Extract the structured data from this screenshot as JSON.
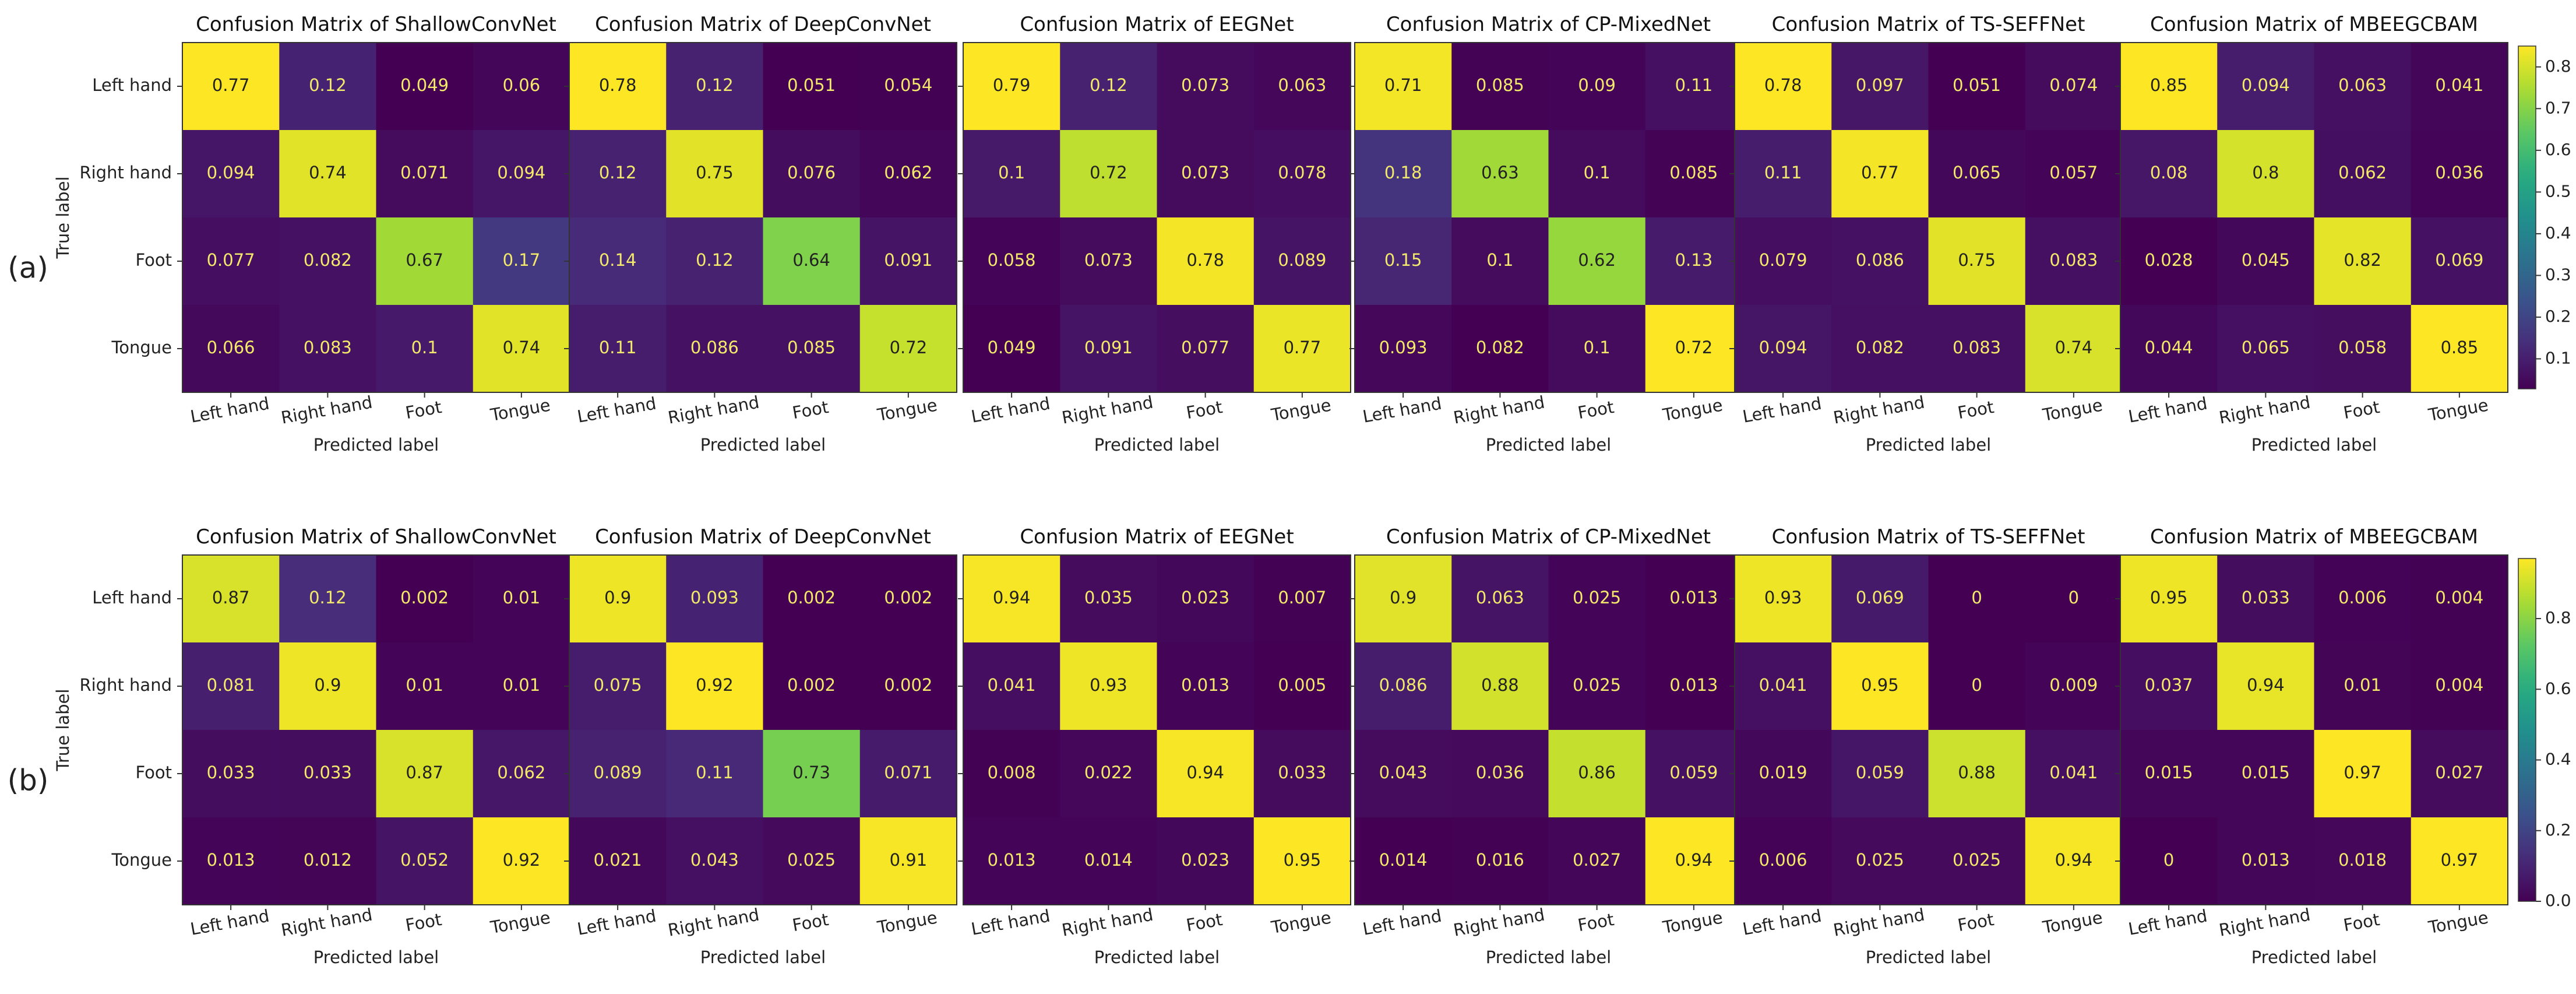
{
  "row_labels": [
    "(a)",
    "(b)"
  ],
  "chart_data": [
    {
      "type": "heatmap",
      "row": 0,
      "title": "Confusion Matrix of ShallowConvNet",
      "xlabel": "Predicted label",
      "ylabel": "True label",
      "x_categories": [
        "Left hand",
        "Right hand",
        "Foot",
        "Tongue"
      ],
      "y_categories": [
        "Left hand",
        "Right hand",
        "Foot",
        "Tongue"
      ],
      "cell_labels": [
        [
          "0.77",
          "0.12",
          "0.049",
          "0.06"
        ],
        [
          "0.094",
          "0.74",
          "0.071",
          "0.094"
        ],
        [
          "0.077",
          "0.082",
          "0.67",
          "0.17"
        ],
        [
          "0.066",
          "0.083",
          "0.1",
          "0.74"
        ]
      ],
      "values": [
        [
          0.77,
          0.12,
          0.049,
          0.06
        ],
        [
          0.094,
          0.74,
          0.071,
          0.094
        ],
        [
          0.077,
          0.082,
          0.67,
          0.17
        ],
        [
          0.066,
          0.083,
          0.1,
          0.74
        ]
      ],
      "colormap": "viridis",
      "vmin": 0.049,
      "vmax": 0.77
    },
    {
      "type": "heatmap",
      "row": 0,
      "title": "Confusion Matrix of DeepConvNet",
      "xlabel": "Predicted label",
      "ylabel": "",
      "x_categories": [
        "Left hand",
        "Right hand",
        "Foot",
        "Tongue"
      ],
      "y_categories": [
        "Left hand",
        "Right hand",
        "Foot",
        "Tongue"
      ],
      "cell_labels": [
        [
          "0.78",
          "0.12",
          "0.051",
          "0.054"
        ],
        [
          "0.12",
          "0.75",
          "0.076",
          "0.062"
        ],
        [
          "0.14",
          "0.12",
          "0.64",
          "0.091"
        ],
        [
          "0.11",
          "0.086",
          "0.085",
          "0.72"
        ]
      ],
      "values": [
        [
          0.78,
          0.12,
          0.051,
          0.054
        ],
        [
          0.12,
          0.75,
          0.076,
          0.062
        ],
        [
          0.14,
          0.12,
          0.64,
          0.091
        ],
        [
          0.11,
          0.086,
          0.085,
          0.72
        ]
      ],
      "colormap": "viridis",
      "vmin": 0.051,
      "vmax": 0.78
    },
    {
      "type": "heatmap",
      "row": 0,
      "title": "Confusion Matrix of EEGNet",
      "xlabel": "Predicted label",
      "ylabel": "",
      "x_categories": [
        "Left hand",
        "Right hand",
        "Foot",
        "Tongue"
      ],
      "y_categories": [
        "Left hand",
        "Right hand",
        "Foot",
        "Tongue"
      ],
      "cell_labels": [
        [
          "0.79",
          "0.12",
          "0.073",
          "0.063"
        ],
        [
          "0.1",
          "0.72",
          "0.073",
          "0.078"
        ],
        [
          "0.058",
          "0.073",
          "0.78",
          "0.089"
        ],
        [
          "0.049",
          "0.091",
          "0.077",
          "0.77"
        ]
      ],
      "values": [
        [
          0.79,
          0.12,
          0.073,
          0.063
        ],
        [
          0.1,
          0.72,
          0.073,
          0.078
        ],
        [
          0.058,
          0.073,
          0.78,
          0.089
        ],
        [
          0.049,
          0.091,
          0.077,
          0.77
        ]
      ],
      "colormap": "viridis",
      "vmin": 0.049,
      "vmax": 0.79
    },
    {
      "type": "heatmap",
      "row": 0,
      "title": "Confusion Matrix of CP-MixedNet",
      "xlabel": "Predicted label",
      "ylabel": "",
      "x_categories": [
        "Left hand",
        "Right hand",
        "Foot",
        "Tongue"
      ],
      "y_categories": [
        "Left hand",
        "Right hand",
        "Foot",
        "Tongue"
      ],
      "cell_labels": [
        [
          "0.71",
          "0.085",
          "0.09",
          "0.11"
        ],
        [
          "0.18",
          "0.63",
          "0.1",
          "0.085"
        ],
        [
          "0.15",
          "0.1",
          "0.62",
          "0.13"
        ],
        [
          "0.093",
          "0.082",
          "0.1",
          "0.72"
        ]
      ],
      "values": [
        [
          0.71,
          0.085,
          0.09,
          0.11
        ],
        [
          0.18,
          0.63,
          0.1,
          0.085
        ],
        [
          0.15,
          0.1,
          0.62,
          0.13
        ],
        [
          0.093,
          0.082,
          0.1,
          0.72
        ]
      ],
      "colormap": "viridis",
      "vmin": 0.082,
      "vmax": 0.72
    },
    {
      "type": "heatmap",
      "row": 0,
      "title": "Confusion Matrix of TS-SEFFNet",
      "xlabel": "Predicted label",
      "ylabel": "",
      "x_categories": [
        "Left hand",
        "Right hand",
        "Foot",
        "Tongue"
      ],
      "y_categories": [
        "Left hand",
        "Right hand",
        "Foot",
        "Tongue"
      ],
      "cell_labels": [
        [
          "0.78",
          "0.097",
          "0.051",
          "0.074"
        ],
        [
          "0.11",
          "0.77",
          "0.065",
          "0.057"
        ],
        [
          "0.079",
          "0.086",
          "0.75",
          "0.083"
        ],
        [
          "0.094",
          "0.082",
          "0.083",
          "0.74"
        ]
      ],
      "values": [
        [
          0.78,
          0.097,
          0.051,
          0.074
        ],
        [
          0.11,
          0.77,
          0.065,
          0.057
        ],
        [
          0.079,
          0.086,
          0.75,
          0.083
        ],
        [
          0.094,
          0.082,
          0.083,
          0.74
        ]
      ],
      "colormap": "viridis",
      "vmin": 0.051,
      "vmax": 0.78
    },
    {
      "type": "heatmap",
      "row": 0,
      "title": "Confusion Matrix of MBEEGCBAM",
      "xlabel": "Predicted label",
      "ylabel": "",
      "x_categories": [
        "Left hand",
        "Right hand",
        "Foot",
        "Tongue"
      ],
      "y_categories": [
        "Left hand",
        "Right hand",
        "Foot",
        "Tongue"
      ],
      "cell_labels": [
        [
          "0.85",
          "0.094",
          "0.063",
          "0.041"
        ],
        [
          "0.08",
          "0.8",
          "0.062",
          "0.036"
        ],
        [
          "0.028",
          "0.045",
          "0.82",
          "0.069"
        ],
        [
          "0.044",
          "0.065",
          "0.058",
          "0.85"
        ]
      ],
      "values": [
        [
          0.85,
          0.094,
          0.063,
          0.041
        ],
        [
          0.08,
          0.8,
          0.062,
          0.036
        ],
        [
          0.028,
          0.045,
          0.82,
          0.069
        ],
        [
          0.044,
          0.065,
          0.058,
          0.85
        ]
      ],
      "colormap": "viridis",
      "vmin": 0.028,
      "vmax": 0.85,
      "colorbar": {
        "ticks": [
          "0.1",
          "0.2",
          "0.3",
          "0.4",
          "0.5",
          "0.6",
          "0.7",
          "0.8"
        ],
        "tick_values": [
          0.1,
          0.2,
          0.3,
          0.4,
          0.5,
          0.6,
          0.7,
          0.8
        ],
        "range": [
          0.028,
          0.85
        ]
      }
    },
    {
      "type": "heatmap",
      "row": 1,
      "title": "Confusion Matrix of ShallowConvNet",
      "xlabel": "Predicted label",
      "ylabel": "True label",
      "x_categories": [
        "Left hand",
        "Right hand",
        "Foot",
        "Tongue"
      ],
      "y_categories": [
        "Left hand",
        "Right hand",
        "Foot",
        "Tongue"
      ],
      "cell_labels": [
        [
          "0.87",
          "0.12",
          "0.002",
          "0.01"
        ],
        [
          "0.081",
          "0.9",
          "0.01",
          "0.01"
        ],
        [
          "0.033",
          "0.033",
          "0.87",
          "0.062"
        ],
        [
          "0.013",
          "0.012",
          "0.052",
          "0.92"
        ]
      ],
      "values": [
        [
          0.87,
          0.12,
          0.002,
          0.01
        ],
        [
          0.081,
          0.9,
          0.01,
          0.01
        ],
        [
          0.033,
          0.033,
          0.87,
          0.062
        ],
        [
          0.013,
          0.012,
          0.052,
          0.92
        ]
      ],
      "colormap": "viridis",
      "vmin": 0.002,
      "vmax": 0.92
    },
    {
      "type": "heatmap",
      "row": 1,
      "title": "Confusion Matrix of DeepConvNet",
      "xlabel": "Predicted label",
      "ylabel": "",
      "x_categories": [
        "Left hand",
        "Right hand",
        "Foot",
        "Tongue"
      ],
      "y_categories": [
        "Left hand",
        "Right hand",
        "Foot",
        "Tongue"
      ],
      "cell_labels": [
        [
          "0.9",
          "0.093",
          "0.002",
          "0.002"
        ],
        [
          "0.075",
          "0.92",
          "0.002",
          "0.002"
        ],
        [
          "0.089",
          "0.11",
          "0.73",
          "0.071"
        ],
        [
          "0.021",
          "0.043",
          "0.025",
          "0.91"
        ]
      ],
      "values": [
        [
          0.9,
          0.093,
          0.002,
          0.002
        ],
        [
          0.075,
          0.92,
          0.002,
          0.002
        ],
        [
          0.089,
          0.11,
          0.73,
          0.071
        ],
        [
          0.021,
          0.043,
          0.025,
          0.91
        ]
      ],
      "colormap": "viridis",
      "vmin": 0.002,
      "vmax": 0.92
    },
    {
      "type": "heatmap",
      "row": 1,
      "title": "Confusion Matrix of EEGNet",
      "xlabel": "Predicted label",
      "ylabel": "",
      "x_categories": [
        "Left hand",
        "Right hand",
        "Foot",
        "Tongue"
      ],
      "y_categories": [
        "Left hand",
        "Right hand",
        "Foot",
        "Tongue"
      ],
      "cell_labels": [
        [
          "0.94",
          "0.035",
          "0.023",
          "0.007"
        ],
        [
          "0.041",
          "0.93",
          "0.013",
          "0.005"
        ],
        [
          "0.008",
          "0.022",
          "0.94",
          "0.033"
        ],
        [
          "0.013",
          "0.014",
          "0.023",
          "0.95"
        ]
      ],
      "values": [
        [
          0.94,
          0.035,
          0.023,
          0.007
        ],
        [
          0.041,
          0.93,
          0.013,
          0.005
        ],
        [
          0.008,
          0.022,
          0.94,
          0.033
        ],
        [
          0.013,
          0.014,
          0.023,
          0.95
        ]
      ],
      "colormap": "viridis",
      "vmin": 0.005,
      "vmax": 0.95
    },
    {
      "type": "heatmap",
      "row": 1,
      "title": "Confusion Matrix of CP-MixedNet",
      "xlabel": "Predicted label",
      "ylabel": "",
      "x_categories": [
        "Left hand",
        "Right hand",
        "Foot",
        "Tongue"
      ],
      "y_categories": [
        "Left hand",
        "Right hand",
        "Foot",
        "Tongue"
      ],
      "cell_labels": [
        [
          "0.9",
          "0.063",
          "0.025",
          "0.013"
        ],
        [
          "0.086",
          "0.88",
          "0.025",
          "0.013"
        ],
        [
          "0.043",
          "0.036",
          "0.86",
          "0.059"
        ],
        [
          "0.014",
          "0.016",
          "0.027",
          "0.94"
        ]
      ],
      "values": [
        [
          0.9,
          0.063,
          0.025,
          0.013
        ],
        [
          0.086,
          0.88,
          0.025,
          0.013
        ],
        [
          0.043,
          0.036,
          0.86,
          0.059
        ],
        [
          0.014,
          0.016,
          0.027,
          0.94
        ]
      ],
      "colormap": "viridis",
      "vmin": 0.013,
      "vmax": 0.94
    },
    {
      "type": "heatmap",
      "row": 1,
      "title": "Confusion Matrix of TS-SEFFNet",
      "xlabel": "Predicted label",
      "ylabel": "",
      "x_categories": [
        "Left hand",
        "Right hand",
        "Foot",
        "Tongue"
      ],
      "y_categories": [
        "Left hand",
        "Right hand",
        "Foot",
        "Tongue"
      ],
      "cell_labels": [
        [
          "0.93",
          "0.069",
          "0",
          "0"
        ],
        [
          "0.041",
          "0.95",
          "0",
          "0.009"
        ],
        [
          "0.019",
          "0.059",
          "0.88",
          "0.041"
        ],
        [
          "0.006",
          "0.025",
          "0.025",
          "0.94"
        ]
      ],
      "values": [
        [
          0.93,
          0.069,
          0,
          0
        ],
        [
          0.041,
          0.95,
          0,
          0.009
        ],
        [
          0.019,
          0.059,
          0.88,
          0.041
        ],
        [
          0.006,
          0.025,
          0.025,
          0.94
        ]
      ],
      "colormap": "viridis",
      "vmin": 0,
      "vmax": 0.95
    },
    {
      "type": "heatmap",
      "row": 1,
      "title": "Confusion Matrix of MBEEGCBAM",
      "xlabel": "Predicted label",
      "ylabel": "",
      "x_categories": [
        "Left hand",
        "Right hand",
        "Foot",
        "Tongue"
      ],
      "y_categories": [
        "Left hand",
        "Right hand",
        "Foot",
        "Tongue"
      ],
      "cell_labels": [
        [
          "0.95",
          "0.033",
          "0.006",
          "0.004"
        ],
        [
          "0.037",
          "0.94",
          "0.01",
          "0.004"
        ],
        [
          "0.015",
          "0.015",
          "0.97",
          "0.027"
        ],
        [
          "0",
          "0.013",
          "0.018",
          "0.97"
        ]
      ],
      "values": [
        [
          0.95,
          0.033,
          0.006,
          0.004
        ],
        [
          0.037,
          0.94,
          0.01,
          0.004
        ],
        [
          0.015,
          0.015,
          0.97,
          0.027
        ],
        [
          0,
          0.013,
          0.018,
          0.97
        ]
      ],
      "colormap": "viridis",
      "vmin": 0,
      "vmax": 0.97,
      "colorbar": {
        "ticks": [
          "0.0",
          "0.2",
          "0.4",
          "0.6",
          "0.8"
        ],
        "tick_values": [
          0,
          0.2,
          0.4,
          0.6,
          0.8
        ],
        "range": [
          0,
          0.97
        ]
      }
    }
  ]
}
